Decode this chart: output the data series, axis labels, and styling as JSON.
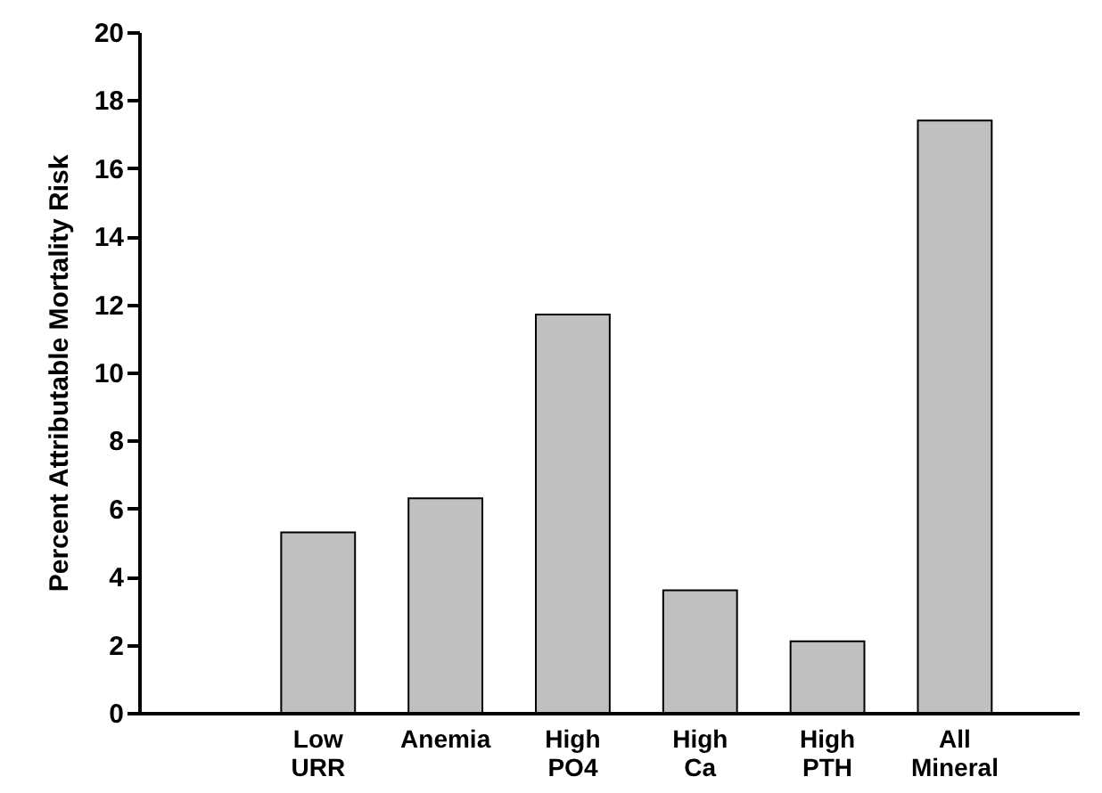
{
  "chart_data": {
    "type": "bar",
    "ylabel": "Percent Attributable Mortality Risk",
    "categories": [
      "Low URR",
      "Anemia",
      "High PO4",
      "High Ca",
      "High PTH",
      "All Mineral"
    ],
    "values": [
      5.3,
      6.3,
      11.7,
      3.6,
      2.1,
      17.4
    ],
    "color": "#c0c0c0",
    "ylim": [
      0,
      20
    ],
    "yticks": [
      0,
      2,
      4,
      6,
      8,
      10,
      12,
      14,
      16,
      18,
      20
    ],
    "grid": false
  }
}
